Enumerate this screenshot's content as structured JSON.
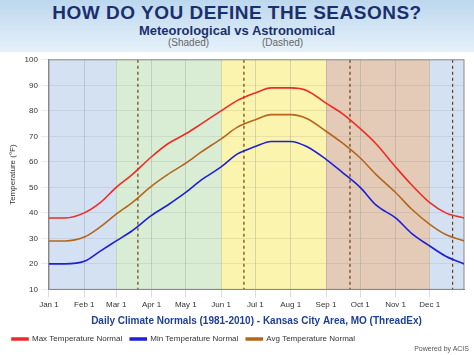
{
  "chart_data": {
    "type": "line",
    "title": "HOW DO YOU DEFINE THE SEASONS?",
    "subtitle": "Meteorological vs Astronomical",
    "annotations": [
      "(Shaded)",
      "(Dashed)",
      "Powered by ACIS"
    ],
    "x_label": "Daily Climate Normals (1981-2010) - Kansas City Area, MO (ThreadEx)",
    "y_label": "Temperature (°F)",
    "x": [
      1,
      15,
      32,
      46,
      60,
      74,
      91,
      105,
      121,
      135,
      152,
      166,
      182,
      196,
      213,
      227,
      244,
      258,
      274,
      288,
      305,
      319,
      335,
      349,
      365
    ],
    "series": [
      {
        "name": "Max Temperature Normal",
        "color": "#ee2b24",
        "values": [
          38,
          38,
          40,
          44,
          50,
          55,
          62,
          67,
          71,
          75,
          80,
          84,
          87,
          89,
          89,
          88,
          83,
          79,
          73,
          67,
          58,
          51,
          44,
          40,
          38
        ]
      },
      {
        "name": "Min Temperature Normal",
        "color": "#1f1fd6",
        "values": [
          20,
          20,
          21,
          25,
          29,
          33,
          39,
          43,
          48,
          53,
          58,
          63,
          66,
          68,
          68,
          66,
          61,
          56,
          50,
          43,
          38,
          32,
          27,
          23,
          20
        ]
      },
      {
        "name": "Avg Temperature Normal",
        "color": "#b5651d",
        "values": [
          29,
          29,
          30.5,
          34.5,
          39.5,
          44,
          50.5,
          55,
          59.5,
          64,
          69,
          73.5,
          76.5,
          78.5,
          78.5,
          77,
          72,
          67.5,
          61.5,
          55,
          48,
          41.5,
          35.5,
          31.5,
          29
        ]
      }
    ],
    "xlim": [
      1,
      365
    ],
    "xticks": [
      {
        "value": 1,
        "label": "Jan 1"
      },
      {
        "value": 32,
        "label": "Feb 1"
      },
      {
        "value": 60,
        "label": "Mar 1"
      },
      {
        "value": 91,
        "label": "Apr 1"
      },
      {
        "value": 121,
        "label": "May 1"
      },
      {
        "value": 152,
        "label": "Jun 1"
      },
      {
        "value": 182,
        "label": "Jul 1"
      },
      {
        "value": 213,
        "label": "Aug 1"
      },
      {
        "value": 244,
        "label": "Sep 1"
      },
      {
        "value": 274,
        "label": "Oct 1"
      },
      {
        "value": 305,
        "label": "Nov 1"
      },
      {
        "value": 335,
        "label": "Dec 1"
      }
    ],
    "ylim": [
      10,
      100
    ],
    "yticks": [
      10,
      20,
      30,
      40,
      50,
      60,
      70,
      80,
      90,
      100
    ],
    "grid": true,
    "legend": "bottom",
    "meteorological_seasons": [
      {
        "start": 1,
        "end": 60,
        "color": "#d3e1f3"
      },
      {
        "start": 60,
        "end": 152,
        "color": "#d9edd5"
      },
      {
        "start": 152,
        "end": 244,
        "color": "#fbf4ae"
      },
      {
        "start": 244,
        "end": 335,
        "color": "#e3cbb7"
      },
      {
        "start": 335,
        "end": 365,
        "color": "#d3e1f3"
      }
    ],
    "astronomical_dates": [
      79,
      172,
      265,
      355
    ]
  }
}
